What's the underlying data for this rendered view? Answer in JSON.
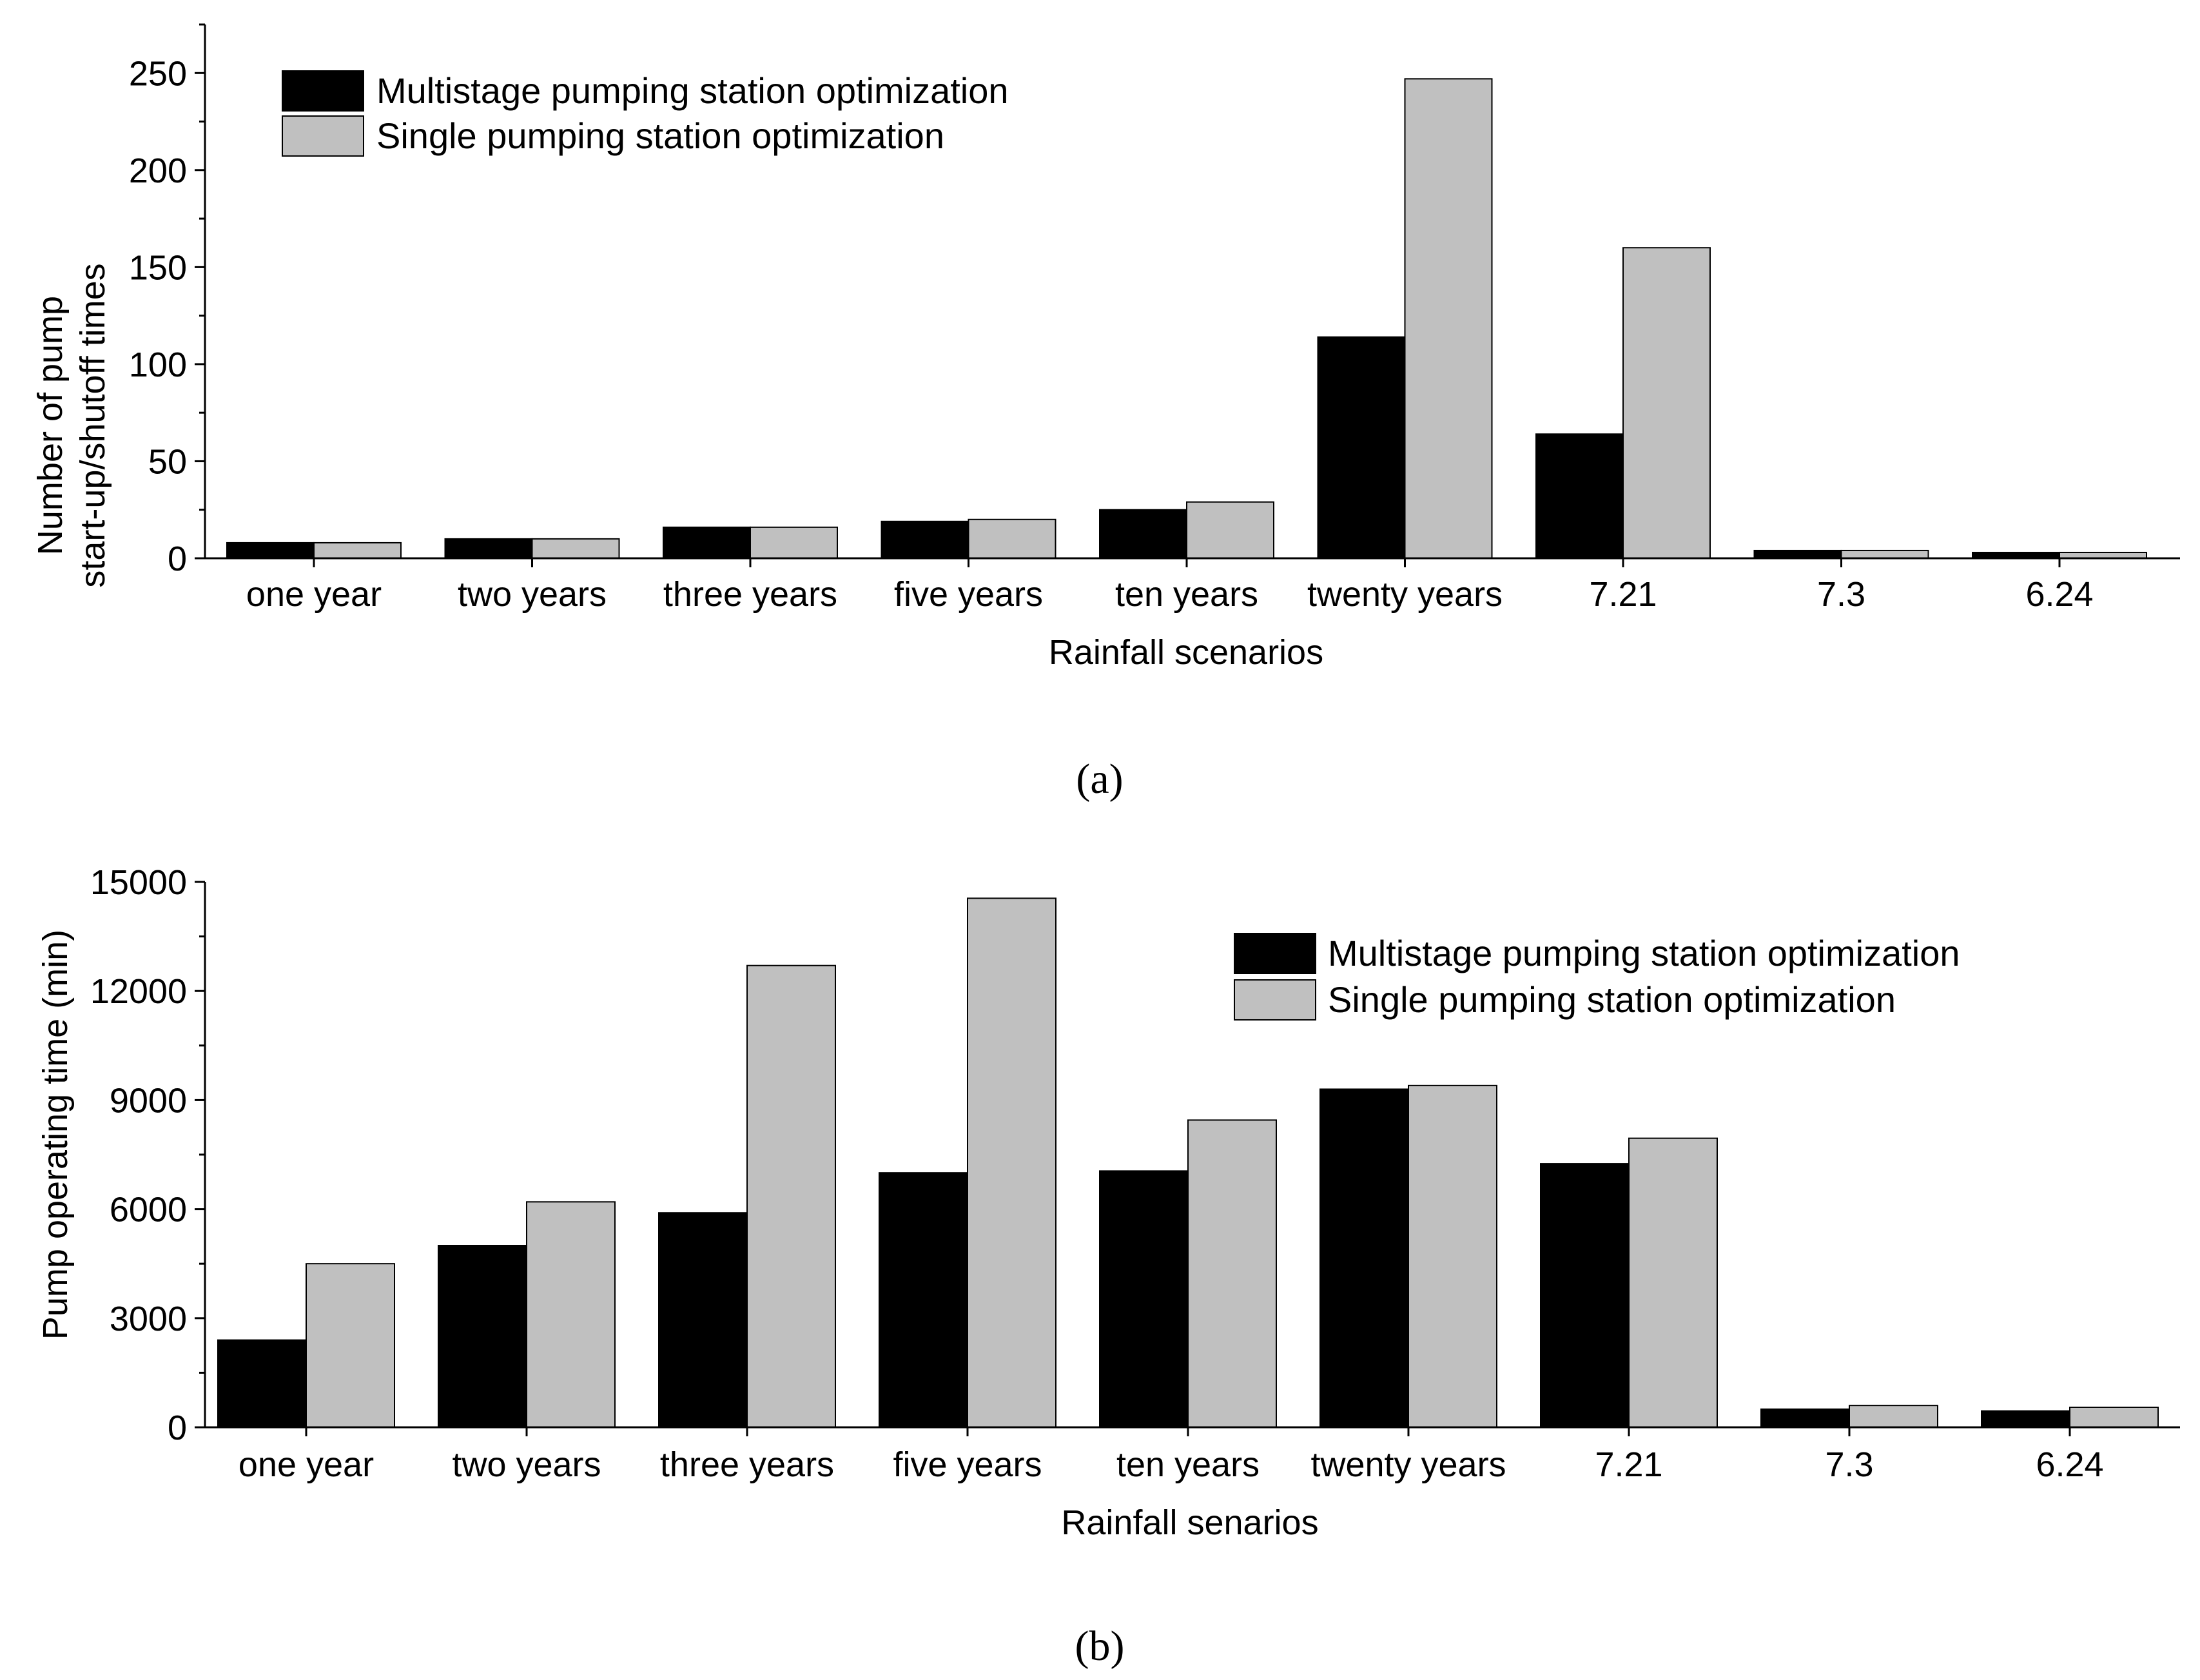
{
  "colors": {
    "series1": "#000000",
    "series2": "#c0c0c0",
    "axis": "#000000"
  },
  "chart_data": [
    {
      "type": "bar",
      "caption": "(a)",
      "categories": [
        "one year",
        "two years",
        "three years",
        "five years",
        "ten years",
        "twenty years",
        "7.21",
        "7.3",
        "6.24"
      ],
      "series": [
        {
          "name": "Multistage pumping station optimization",
          "values": [
            8,
            10,
            16,
            19,
            25,
            114,
            64,
            4,
            3
          ]
        },
        {
          "name": "Single pumping station optimization",
          "values": [
            8,
            10,
            16,
            20,
            29,
            247,
            160,
            4,
            3
          ]
        }
      ],
      "xlabel": "Rainfall scenarios",
      "ylabel_lines": [
        "Number of pump",
        "start-up/shutoff times"
      ],
      "ylim": [
        0,
        275
      ],
      "yticks": [
        0,
        50,
        100,
        150,
        200,
        250
      ],
      "legend_position": "top-left"
    },
    {
      "type": "bar",
      "caption": "(b)",
      "categories": [
        "one year",
        "two years",
        "three years",
        "five years",
        "ten years",
        "twenty years",
        "7.21",
        "7.3",
        "6.24"
      ],
      "series": [
        {
          "name": "Multistage pumping station optimization",
          "values": [
            2400,
            5000,
            5900,
            7000,
            7050,
            9300,
            7250,
            500,
            450
          ]
        },
        {
          "name": "Single pumping station optimization",
          "values": [
            4500,
            6200,
            12700,
            14550,
            8450,
            9400,
            7950,
            600,
            550
          ]
        }
      ],
      "xlabel": "Rainfall senarios",
      "ylabel_lines": [
        "Pump operating time (min)"
      ],
      "ylim": [
        0,
        15000
      ],
      "yticks": [
        0,
        3000,
        6000,
        9000,
        12000,
        15000
      ],
      "legend_position": "top-right"
    }
  ]
}
